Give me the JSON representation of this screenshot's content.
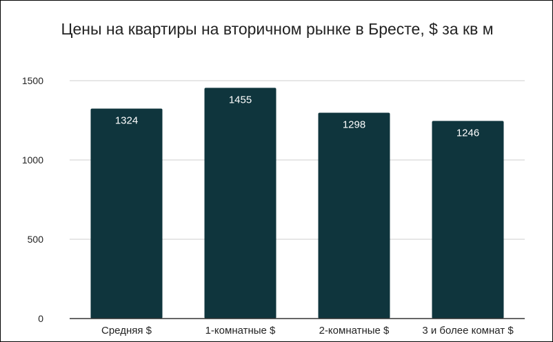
{
  "chart_data": {
    "type": "bar",
    "title": "Цены на квартиры на вторичном рынке в Бресте, $ за кв м",
    "categories": [
      "Средняя $",
      "1-комнатные $",
      "2-комнатные $",
      "3 и более комнат $"
    ],
    "values": [
      1324,
      1455,
      1298,
      1246
    ],
    "data_labels": [
      "1324",
      "1455",
      "1298",
      "1246"
    ],
    "yticks": [
      0,
      500,
      1000,
      1500
    ],
    "ytick_labels": [
      "0",
      "500",
      "1000",
      "1500"
    ],
    "ylim": [
      0,
      1500
    ],
    "xlabel": "",
    "ylabel": "",
    "grid": true,
    "legend": "none",
    "bar_color": "#0f353d",
    "grid_color": "#cccccc",
    "axis_color": "#333333"
  }
}
